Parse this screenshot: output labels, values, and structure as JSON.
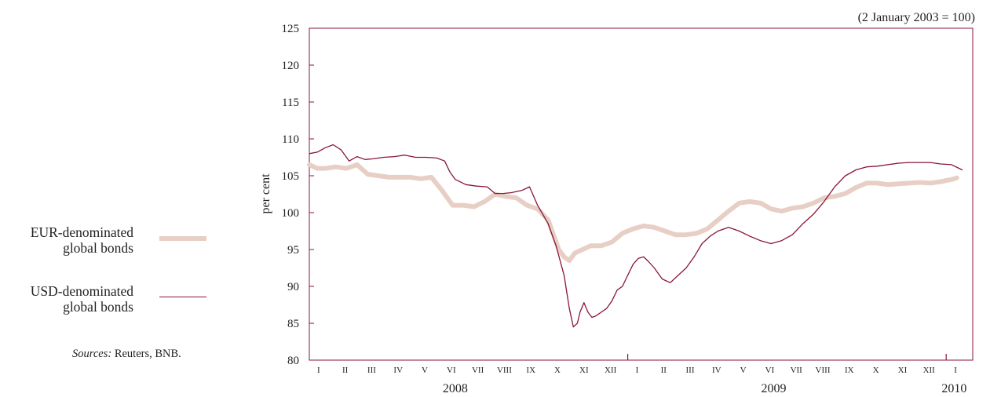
{
  "legend": {
    "eur_line1": "EUR-denominated",
    "eur_line2": "global bonds",
    "usd_line1": "USD-denominated",
    "usd_line2": "global bonds"
  },
  "source": {
    "label": "Sources:",
    "text": "Reuters, BNB."
  },
  "chart_data": {
    "type": "line",
    "title": "",
    "note": "(2 January 2003 = 100)",
    "ylabel": "per cent",
    "xlabel": "",
    "ylim": [
      80,
      125
    ],
    "yticks": [
      80,
      85,
      90,
      95,
      100,
      105,
      110,
      115,
      120,
      125
    ],
    "grid": false,
    "x_unit": "month",
    "x_start": "2008-01",
    "months": [
      "I",
      "II",
      "III",
      "IV",
      "V",
      "VI",
      "VII",
      "VIII",
      "IX",
      "X",
      "XI",
      "XII",
      "I",
      "II",
      "III",
      "IV",
      "V",
      "VI",
      "VII",
      "VIII",
      "IX",
      "X",
      "XI",
      "XII",
      "I"
    ],
    "years": [
      {
        "label": "2008",
        "month_index": 5.5
      },
      {
        "label": "2009",
        "month_index": 17.5
      },
      {
        "label": "2010",
        "month_index": 24.3
      }
    ],
    "colors": {
      "eur": "#e8cfc6",
      "usd": "#8a1538",
      "axis": "#8a1538",
      "text": "#231f20"
    },
    "series": [
      {
        "name": "EUR-denominated global bonds",
        "key": "eur",
        "x": [
          0,
          0.3,
          0.6,
          1.0,
          1.4,
          1.8,
          2.2,
          2.6,
          3.0,
          3.4,
          3.8,
          4.2,
          4.6,
          5.0,
          5.4,
          5.8,
          6.2,
          6.6,
          7.0,
          7.4,
          7.8,
          8.2,
          8.6,
          9.0,
          9.2,
          9.4,
          9.6,
          9.8,
          10.0,
          10.3,
          10.6,
          11.0,
          11.4,
          11.8,
          12.2,
          12.6,
          13.0,
          13.4,
          13.8,
          14.2,
          14.6,
          15.0,
          15.4,
          15.8,
          16.2,
          16.6,
          17.0,
          17.4,
          17.8,
          18.2,
          18.6,
          19.0,
          19.4,
          19.8,
          20.2,
          20.6,
          21.0,
          21.4,
          21.8,
          22.2,
          22.6,
          23.0,
          23.4,
          23.8,
          24.2,
          24.4
        ],
        "values": [
          106.5,
          106.0,
          106.0,
          106.2,
          106.0,
          106.5,
          105.2,
          105.0,
          104.8,
          104.8,
          104.8,
          104.6,
          104.8,
          103.0,
          101.0,
          101.0,
          100.8,
          101.5,
          102.5,
          102.2,
          102.0,
          101.0,
          100.5,
          99.0,
          97.0,
          95.0,
          94.0,
          93.5,
          94.5,
          95.0,
          95.5,
          95.5,
          96.0,
          97.2,
          97.8,
          98.2,
          98.0,
          97.5,
          97.0,
          97.0,
          97.2,
          97.8,
          99.0,
          100.2,
          101.3,
          101.5,
          101.3,
          100.5,
          100.2,
          100.6,
          100.8,
          101.3,
          102.0,
          102.2,
          102.6,
          103.4,
          104.0,
          104.0,
          103.8,
          103.9,
          104.0,
          104.1,
          104.0,
          104.2,
          104.5,
          104.7
        ]
      },
      {
        "name": "USD-denominated global bonds",
        "key": "usd",
        "x": [
          0,
          0.3,
          0.6,
          0.9,
          1.2,
          1.5,
          1.8,
          2.1,
          2.4,
          2.8,
          3.2,
          3.6,
          4.0,
          4.4,
          4.8,
          5.1,
          5.3,
          5.5,
          5.9,
          6.3,
          6.7,
          7.0,
          7.3,
          7.6,
          8.0,
          8.3,
          8.6,
          9.0,
          9.3,
          9.6,
          9.8,
          9.95,
          10.1,
          10.2,
          10.35,
          10.5,
          10.65,
          10.8,
          11.0,
          11.2,
          11.4,
          11.6,
          11.8,
          12.0,
          12.2,
          12.4,
          12.6,
          12.8,
          13.0,
          13.3,
          13.6,
          13.9,
          14.2,
          14.5,
          14.8,
          15.1,
          15.4,
          15.8,
          16.2,
          16.6,
          17.0,
          17.4,
          17.8,
          18.2,
          18.6,
          19.0,
          19.4,
          19.8,
          20.2,
          20.6,
          21.0,
          21.4,
          21.8,
          22.2,
          22.6,
          23.0,
          23.4,
          23.8,
          24.2,
          24.6
        ],
        "values": [
          108.0,
          108.2,
          108.8,
          109.2,
          108.5,
          107.0,
          107.6,
          107.2,
          107.3,
          107.5,
          107.6,
          107.8,
          107.5,
          107.5,
          107.4,
          107.0,
          105.5,
          104.5,
          103.8,
          103.6,
          103.5,
          102.6,
          102.6,
          102.7,
          103.0,
          103.5,
          101.0,
          98.5,
          95.5,
          91.5,
          87.0,
          84.5,
          85.0,
          86.5,
          87.8,
          86.5,
          85.8,
          86.0,
          86.5,
          87.0,
          88.0,
          89.5,
          90.0,
          91.5,
          93.0,
          93.8,
          94.0,
          93.3,
          92.5,
          91.0,
          90.5,
          91.5,
          92.5,
          94.0,
          95.8,
          96.8,
          97.5,
          98.0,
          97.5,
          96.8,
          96.2,
          95.8,
          96.2,
          97.0,
          98.5,
          99.8,
          101.5,
          103.5,
          105.0,
          105.8,
          106.2,
          106.3,
          106.5,
          106.7,
          106.8,
          106.8,
          106.8,
          106.6,
          106.5,
          105.8
        ]
      }
    ]
  }
}
